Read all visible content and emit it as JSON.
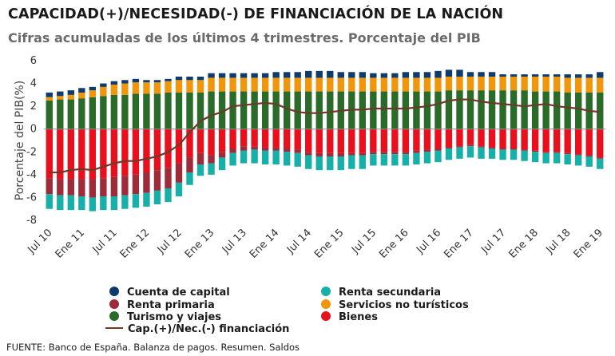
{
  "header": {
    "title": "CAPACIDAD(+)/NECESIDAD(-) DE FINANCIACIÓN DE LA NACIÓN",
    "subtitle": "Cifras acumuladas de los últimos 4 trimestres. Porcentaje del PIB"
  },
  "source": "FUENTE: Banco de España. Balanza de pagos. Resumen. Saldos",
  "legend": {
    "cuenta_capital": "Cuenta de capital",
    "renta_primaria": "Renta primaria",
    "turismo": "Turismo y viajes",
    "capnec": "Cap.(+)/Nec.(-) financiación",
    "renta_secundaria": "Renta secundaria",
    "servicios": "Servicios no turísticos",
    "bienes": "Bienes"
  },
  "colors": {
    "cuenta_capital": "#0d3b6e",
    "renta_primaria": "#9e2b3a",
    "turismo": "#2a6b2a",
    "renta_secundaria": "#17b0a8",
    "servicios": "#f0960c",
    "bienes": "#e8101c",
    "capnec": "#6b3a28"
  },
  "chart_data": {
    "type": "bar",
    "stacked": true,
    "ylabel": "Porcentaje del PIB(%)",
    "ylim": [
      -8,
      6
    ],
    "yticks": [
      -8,
      -6,
      -4,
      -2,
      0,
      2,
      4,
      6
    ],
    "grid": false,
    "legend_position": "bottom",
    "categories": [
      "Jul 10",
      "",
      "",
      "Ene 11",
      "",
      "",
      "Jul 11",
      "",
      "",
      "Ene 12",
      "",
      "",
      "Jul 12",
      "",
      "",
      "Ene 13",
      "",
      "",
      "Jul 13",
      "",
      "",
      "Ene 14",
      "",
      "",
      "Jul 14",
      "",
      "",
      "Ene 15",
      "",
      "",
      "Jul 15",
      "",
      "",
      "Ene 16",
      "",
      "",
      "Jul 16",
      "",
      "",
      "Ene 17",
      "",
      "",
      "Jul 17",
      "",
      "",
      "Ene 18",
      "",
      "",
      "Jul 18",
      "",
      "",
      "Ene 19"
    ],
    "tick_labels": [
      "Jul 10",
      "Ene 11",
      "Jul 11",
      "Ene 12",
      "Jul 12",
      "Ene 13",
      "Jul 13",
      "Ene 14",
      "Jul 14",
      "Ene 15",
      "Jul 15",
      "Ene 16",
      "Jul 16",
      "Ene 17",
      "Jul 17",
      "Ene 18",
      "Jul 18",
      "Ene 19"
    ],
    "series": [
      {
        "name": "Turismo y viajes",
        "key": "turismo",
        "values": [
          2.5,
          2.6,
          2.6,
          2.7,
          2.8,
          2.9,
          3.0,
          3.0,
          3.1,
          3.1,
          3.1,
          3.2,
          3.2,
          3.2,
          3.2,
          3.3,
          3.3,
          3.3,
          3.3,
          3.3,
          3.3,
          3.3,
          3.3,
          3.3,
          3.3,
          3.3,
          3.3,
          3.3,
          3.3,
          3.3,
          3.3,
          3.3,
          3.3,
          3.3,
          3.3,
          3.3,
          3.3,
          3.4,
          3.4,
          3.4,
          3.4,
          3.4,
          3.4,
          3.4,
          3.4,
          3.3,
          3.3,
          3.3,
          3.2,
          3.2,
          3.2,
          3.2
        ]
      },
      {
        "name": "Servicios no turísticos",
        "key": "servicios",
        "values": [
          0.3,
          0.3,
          0.4,
          0.5,
          0.6,
          0.8,
          0.9,
          1.0,
          1.0,
          1.0,
          1.0,
          1.0,
          1.1,
          1.1,
          1.1,
          1.2,
          1.2,
          1.2,
          1.2,
          1.2,
          1.2,
          1.2,
          1.2,
          1.2,
          1.2,
          1.2,
          1.2,
          1.2,
          1.2,
          1.2,
          1.2,
          1.2,
          1.2,
          1.2,
          1.2,
          1.2,
          1.2,
          1.2,
          1.2,
          1.2,
          1.2,
          1.2,
          1.2,
          1.2,
          1.2,
          1.3,
          1.3,
          1.3,
          1.3,
          1.3,
          1.3,
          1.3
        ]
      },
      {
        "name": "Cuenta de capital",
        "key": "cuenta_capital",
        "values": [
          0.4,
          0.4,
          0.4,
          0.4,
          0.3,
          0.3,
          0.3,
          0.3,
          0.3,
          0.2,
          0.2,
          0.2,
          0.3,
          0.3,
          0.3,
          0.4,
          0.4,
          0.4,
          0.4,
          0.4,
          0.4,
          0.5,
          0.5,
          0.5,
          0.6,
          0.6,
          0.6,
          0.5,
          0.5,
          0.5,
          0.4,
          0.4,
          0.4,
          0.5,
          0.5,
          0.5,
          0.6,
          0.6,
          0.6,
          0.4,
          0.4,
          0.4,
          0.2,
          0.2,
          0.2,
          0.2,
          0.2,
          0.2,
          0.3,
          0.3,
          0.3,
          0.5
        ]
      },
      {
        "name": "Bienes",
        "key": "bienes",
        "values": [
          -4.3,
          -4.4,
          -4.4,
          -4.4,
          -4.4,
          -4.3,
          -4.2,
          -4.1,
          -4.0,
          -3.8,
          -3.6,
          -3.4,
          -3.0,
          -2.5,
          -2.1,
          -2.3,
          -2.0,
          -1.7,
          -1.5,
          -1.5,
          -1.6,
          -1.6,
          -1.7,
          -1.8,
          -2.0,
          -2.1,
          -2.1,
          -2.1,
          -2.1,
          -2.1,
          -2.0,
          -2.0,
          -2.0,
          -2.0,
          -1.9,
          -1.8,
          -1.7,
          -1.6,
          -1.5,
          -1.4,
          -1.5,
          -1.6,
          -1.7,
          -1.7,
          -1.8,
          -1.9,
          -2.0,
          -2.0,
          -2.1,
          -2.2,
          -2.3,
          -2.5
        ]
      },
      {
        "name": "Renta primaria",
        "key": "renta_primaria",
        "values": [
          -1.4,
          -1.4,
          -1.4,
          -1.5,
          -1.6,
          -1.6,
          -1.7,
          -1.7,
          -1.7,
          -1.8,
          -1.8,
          -1.8,
          -1.7,
          -1.3,
          -1.0,
          -0.7,
          -0.5,
          -0.4,
          -0.4,
          -0.3,
          -0.3,
          -0.3,
          -0.3,
          -0.3,
          -0.3,
          -0.3,
          -0.3,
          -0.3,
          -0.2,
          -0.2,
          -0.2,
          -0.2,
          -0.2,
          -0.2,
          -0.2,
          -0.2,
          -0.2,
          -0.1,
          -0.1,
          -0.1,
          -0.1,
          -0.1,
          -0.1,
          -0.1,
          -0.1,
          -0.1,
          -0.1,
          -0.1,
          -0.1,
          -0.1,
          -0.1,
          -0.1
        ]
      },
      {
        "name": "Renta secundaria",
        "key": "renta_secundaria",
        "values": [
          -1.3,
          -1.3,
          -1.3,
          -1.2,
          -1.2,
          -1.2,
          -1.2,
          -1.2,
          -1.2,
          -1.2,
          -1.2,
          -1.2,
          -1.2,
          -1.1,
          -1.0,
          -1.0,
          -1.1,
          -1.1,
          -1.1,
          -1.2,
          -1.2,
          -1.2,
          -1.2,
          -1.2,
          -1.2,
          -1.2,
          -1.2,
          -1.2,
          -1.2,
          -1.2,
          -1.0,
          -1.0,
          -1.0,
          -1.0,
          -1.0,
          -1.0,
          -1.0,
          -1.0,
          -1.0,
          -1.0,
          -1.0,
          -0.9,
          -0.9,
          -0.9,
          -0.9,
          -0.9,
          -0.9,
          -0.9,
          -0.9,
          -0.9,
          -0.9,
          -0.9
        ]
      }
    ],
    "line": {
      "name": "Cap.(+)/Nec.(-) financiación",
      "key": "capnec",
      "values": [
        -3.8,
        -3.8,
        -3.6,
        -3.5,
        -3.6,
        -3.3,
        -3.0,
        -2.8,
        -2.8,
        -2.6,
        -2.4,
        -2.0,
        -1.4,
        -0.3,
        0.7,
        1.2,
        1.5,
        2.0,
        2.1,
        2.2,
        2.3,
        2.2,
        1.8,
        1.5,
        1.4,
        1.4,
        1.5,
        1.6,
        1.7,
        1.7,
        1.8,
        1.8,
        1.8,
        1.8,
        1.9,
        2.0,
        2.2,
        2.5,
        2.6,
        2.6,
        2.4,
        2.3,
        2.2,
        2.1,
        2.0,
        2.1,
        2.2,
        2.0,
        1.9,
        1.8,
        1.6,
        1.5
      ]
    }
  }
}
